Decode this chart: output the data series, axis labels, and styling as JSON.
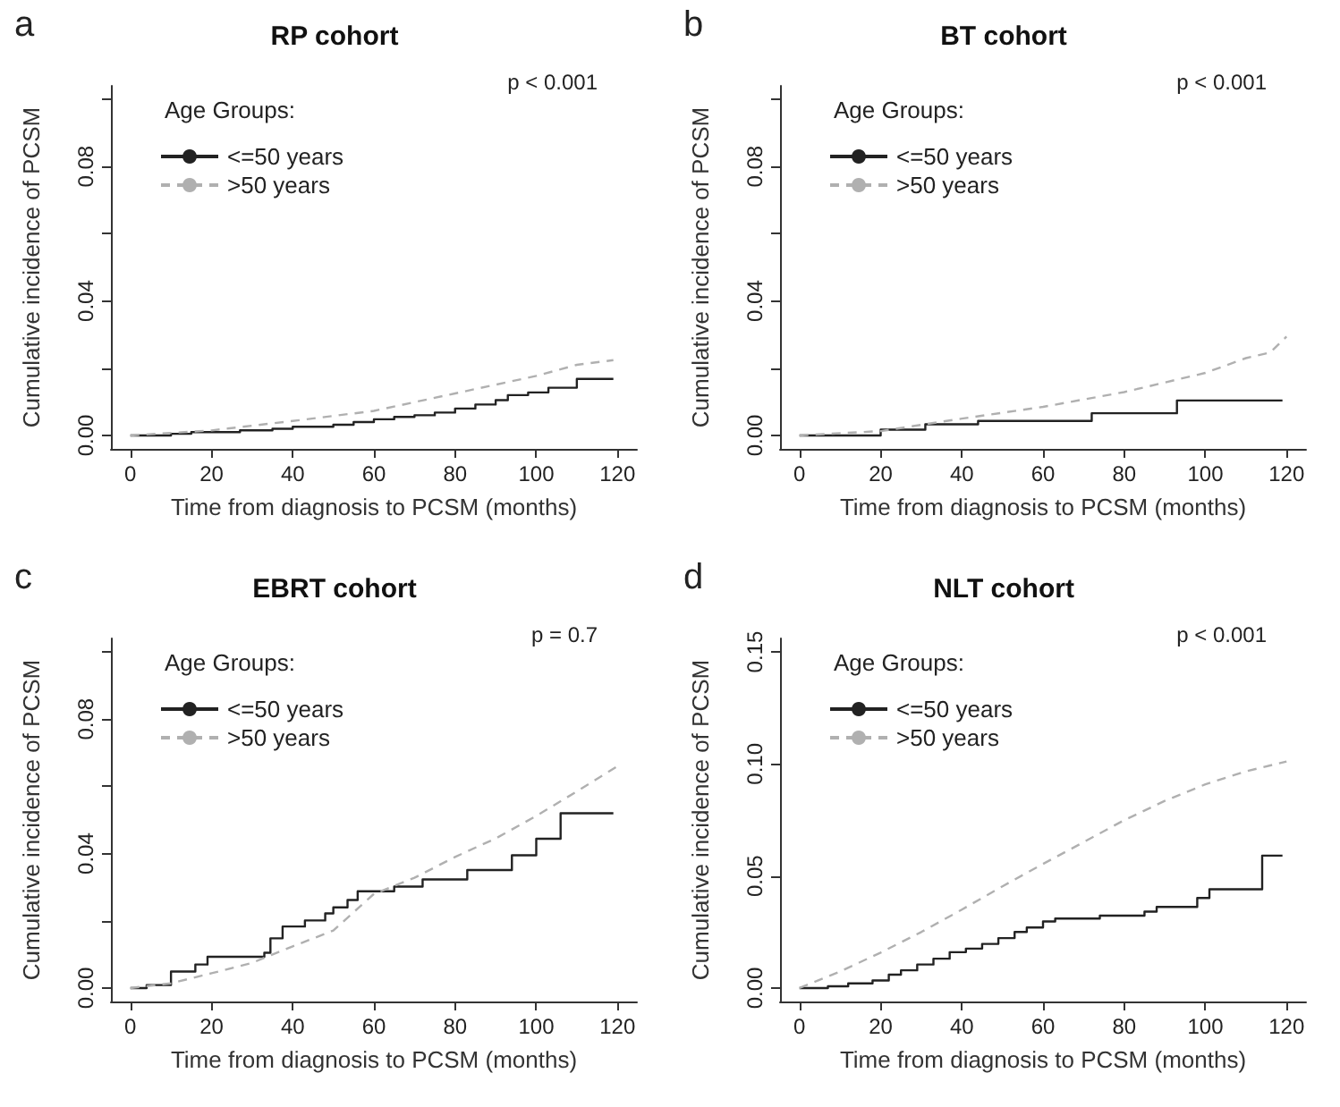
{
  "chart_data": [
    {
      "type": "step",
      "title": "RP cohort",
      "xlabel": "Time from diagnosis to PCSM (months)",
      "ylabel": "Cumulative incidence of PCSM",
      "legend_title": "Age Groups:",
      "legend": "top left",
      "grid": false,
      "marker": "none",
      "annotations": [
        "a",
        "p < 0.001"
      ],
      "xlim": [
        -4.8,
        124.8
      ],
      "xticks": [
        0,
        20,
        40,
        60,
        80,
        100,
        120
      ],
      "ylim": [
        -0.004,
        0.104
      ],
      "yticks": [
        {
          "value": 0,
          "label": "0.00"
        },
        {
          "value": 0.02,
          "label": null
        },
        {
          "value": 0.04,
          "label": "0.04"
        },
        {
          "value": 0.06,
          "label": null
        },
        {
          "value": 0.08,
          "label": "0.08"
        },
        {
          "value": 0.1,
          "label": null
        }
      ],
      "series": [
        {
          "name": "<=50 years",
          "color": "#222222",
          "line_style": "solid",
          "x": [
            0,
            10,
            15,
            27,
            35,
            40,
            50,
            55,
            60,
            65,
            70,
            75,
            80,
            85,
            90,
            93,
            98,
            103,
            110,
            119
          ],
          "values": [
            0,
            0.0005,
            0.001,
            0.0015,
            0.002,
            0.0026,
            0.0032,
            0.004,
            0.0048,
            0.0055,
            0.006,
            0.0068,
            0.008,
            0.0092,
            0.0105,
            0.012,
            0.0128,
            0.0142,
            0.0168,
            0.0168
          ]
        },
        {
          "name": ">50 years",
          "type": "line",
          "color": "#b0b0b0",
          "line_style": "dashed",
          "x": [
            0,
            20,
            40,
            60,
            80,
            100,
            110,
            119
          ],
          "values": [
            0,
            0.0015,
            0.0043,
            0.0073,
            0.0125,
            0.0177,
            0.021,
            0.0224
          ]
        }
      ]
    },
    {
      "type": "step",
      "title": "BT cohort",
      "xlabel": "Time from diagnosis to PCSM (months)",
      "ylabel": "Cumulative incidence of PCSM",
      "legend_title": "Age Groups:",
      "legend": "top left",
      "grid": false,
      "marker": "none",
      "annotations": [
        "b",
        "p < 0.001"
      ],
      "xlim": [
        -4.8,
        124.8
      ],
      "xticks": [
        0,
        20,
        40,
        60,
        80,
        100,
        120
      ],
      "ylim": [
        -0.004,
        0.104
      ],
      "yticks": [
        {
          "value": 0,
          "label": "0.00"
        },
        {
          "value": 0.02,
          "label": null
        },
        {
          "value": 0.04,
          "label": "0.04"
        },
        {
          "value": 0.06,
          "label": null
        },
        {
          "value": 0.08,
          "label": "0.08"
        },
        {
          "value": 0.1,
          "label": null
        }
      ],
      "series": [
        {
          "name": "<=50 years",
          "color": "#222222",
          "line_style": "solid",
          "x": [
            0,
            20,
            31,
            44,
            72,
            93,
            119
          ],
          "values": [
            0,
            0.0017,
            0.0033,
            0.0043,
            0.0066,
            0.0104,
            0.0104
          ]
        },
        {
          "name": ">50 years",
          "type": "line",
          "color": "#b0b0b0",
          "line_style": "dashed",
          "x": [
            0,
            20,
            40,
            60,
            80,
            100,
            110,
            116,
            120
          ],
          "values": [
            0,
            0.0013,
            0.005,
            0.0085,
            0.0129,
            0.0186,
            0.023,
            0.0247,
            0.0294
          ]
        }
      ]
    },
    {
      "type": "step",
      "title": "EBRT cohort",
      "xlabel": "Time from diagnosis to PCSM (months)",
      "ylabel": "Cumulative incidence of PCSM",
      "legend_title": "Age Groups:",
      "legend": "top left",
      "grid": false,
      "marker": "none",
      "annotations": [
        "c",
        "p = 0.7"
      ],
      "xlim": [
        -4.8,
        124.8
      ],
      "xticks": [
        0,
        20,
        40,
        60,
        80,
        100,
        120
      ],
      "ylim": [
        -0.004,
        0.104
      ],
      "yticks": [
        {
          "value": 0,
          "label": "0.00"
        },
        {
          "value": 0.02,
          "label": null
        },
        {
          "value": 0.04,
          "label": "0.04"
        },
        {
          "value": 0.06,
          "label": null
        },
        {
          "value": 0.08,
          "label": "0.08"
        },
        {
          "value": 0.1,
          "label": null
        }
      ],
      "series": [
        {
          "name": "<=50 years",
          "color": "#222222",
          "line_style": "solid",
          "x": [
            0,
            4,
            10,
            16,
            19,
            33,
            34.5,
            37.5,
            43,
            48,
            50,
            53.5,
            56,
            65,
            72,
            83,
            94,
            100,
            106,
            119
          ],
          "values": [
            0,
            0.0009,
            0.0049,
            0.007,
            0.0093,
            0.0105,
            0.0148,
            0.0183,
            0.0201,
            0.0222,
            0.024,
            0.0262,
            0.0288,
            0.0302,
            0.0323,
            0.0351,
            0.0395,
            0.0444,
            0.052,
            0.052
          ]
        },
        {
          "name": ">50 years",
          "type": "line",
          "color": "#b0b0b0",
          "line_style": "dashed",
          "x": [
            0,
            10,
            20,
            30,
            40,
            50,
            60,
            70,
            80,
            90,
            100,
            110,
            120
          ],
          "values": [
            0,
            0.0014,
            0.0044,
            0.0075,
            0.0124,
            0.0171,
            0.028,
            0.0328,
            0.039,
            0.0445,
            0.0512,
            0.0585,
            0.066
          ]
        }
      ]
    },
    {
      "type": "step",
      "title": "NLT cohort",
      "xlabel": "Time from diagnosis to PCSM (months)",
      "ylabel": "Cumulative incidence of PCSM",
      "legend_title": "Age Groups:",
      "legend": "top left",
      "grid": false,
      "marker": "none",
      "annotations": [
        "d",
        "p < 0.001"
      ],
      "xlim": [
        -4.8,
        124.8
      ],
      "xticks": [
        0,
        20,
        40,
        60,
        80,
        100,
        120
      ],
      "ylim": [
        -0.006,
        0.156
      ],
      "yticks": [
        {
          "value": 0,
          "label": "0.00"
        },
        {
          "value": 0.05,
          "label": "0.05"
        },
        {
          "value": 0.1,
          "label": "0.10"
        },
        {
          "value": 0.15,
          "label": "0.15"
        }
      ],
      "series": [
        {
          "name": "<=50 years",
          "color": "#222222",
          "line_style": "solid",
          "x": [
            0,
            7,
            12,
            18,
            22,
            25,
            29,
            33,
            37,
            41,
            45,
            49,
            53,
            56,
            60,
            63,
            74,
            85,
            88,
            98,
            101,
            114,
            119
          ],
          "values": [
            0,
            0.0008,
            0.0021,
            0.0034,
            0.006,
            0.0079,
            0.0105,
            0.0131,
            0.016,
            0.0176,
            0.0197,
            0.0223,
            0.025,
            0.027,
            0.0297,
            0.031,
            0.0323,
            0.0341,
            0.0362,
            0.0402,
            0.0441,
            0.0591,
            0.0591
          ]
        },
        {
          "name": ">50 years",
          "type": "line",
          "color": "#b0b0b0",
          "line_style": "dashed",
          "x": [
            0,
            10,
            20,
            30,
            40,
            50,
            60,
            70,
            80,
            90,
            100,
            110,
            120
          ],
          "values": [
            0,
            0.0074,
            0.0158,
            0.025,
            0.035,
            0.0454,
            0.0554,
            0.0651,
            0.0749,
            0.0835,
            0.0909,
            0.0967,
            0.1011
          ]
        }
      ]
    }
  ]
}
